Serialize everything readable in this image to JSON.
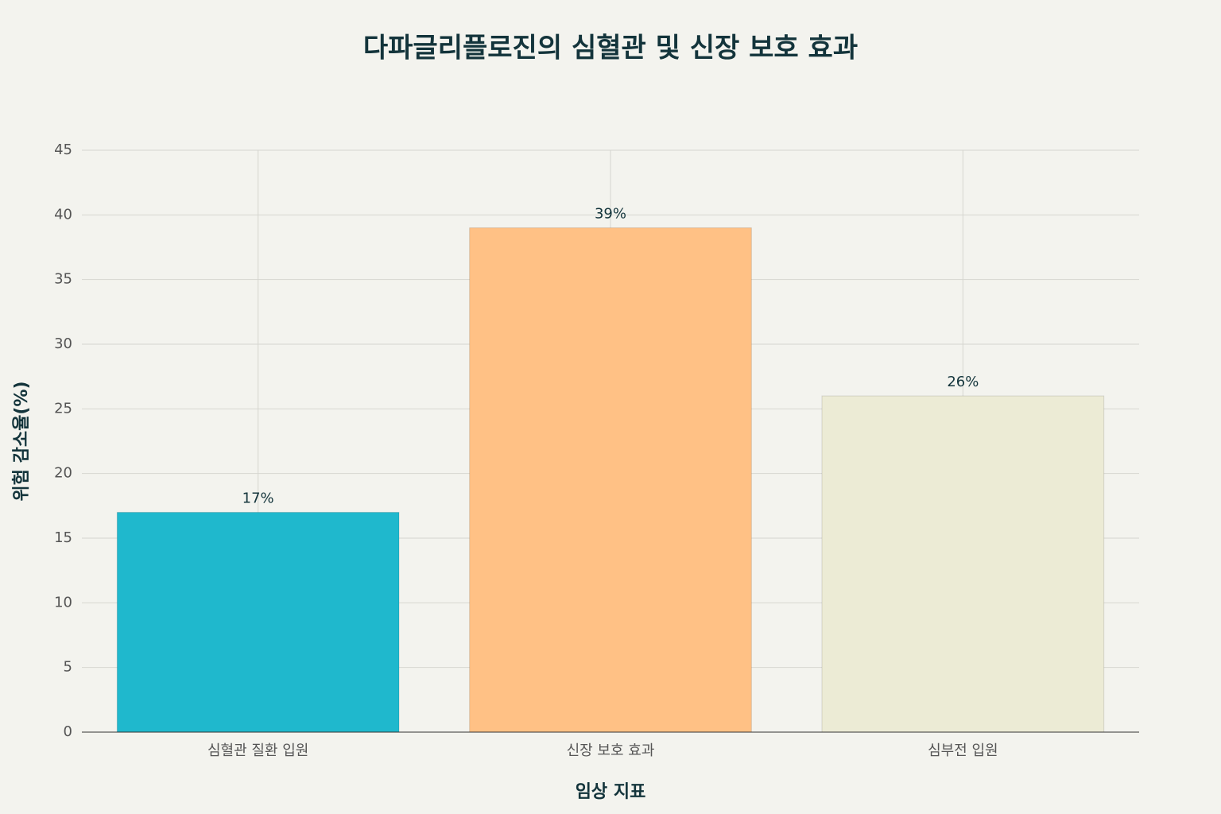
{
  "chart_data": {
    "type": "bar",
    "title": "다파글리플로진의 심혈관 및 신장 보호 효과",
    "x_label": "임상 지표",
    "y_label": "위험 감소율(%)",
    "categories": [
      "심혈관 질환 입원",
      "신장 보호 효과",
      "심부전 입원"
    ],
    "values": [
      17,
      39,
      26
    ],
    "value_labels": [
      "17%",
      "39%",
      "26%"
    ],
    "colors": [
      "#1FB8CD",
      "#FFC185",
      "#ECEBD5"
    ],
    "ylim": [
      0,
      45
    ],
    "yticks": [
      0,
      5,
      10,
      15,
      20,
      25,
      30,
      35,
      40,
      45
    ],
    "grid": true
  }
}
